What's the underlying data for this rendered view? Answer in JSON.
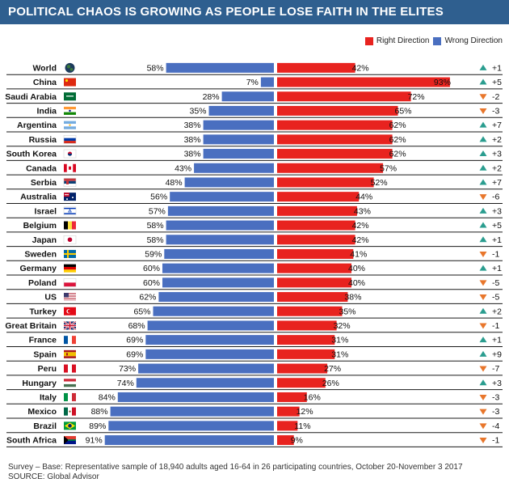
{
  "header": {
    "title": "POLITICAL CHAOS IS GROWING AS PEOPLE LOSE FAITH IN THE ELITES"
  },
  "legend": [
    {
      "name": "Right Direction",
      "color": "#e8231f"
    },
    {
      "name": "Wrong Direction",
      "color": "#4a6fc0"
    }
  ],
  "footer": {
    "survey": "Survey – Base: Representative sample of 18,940 adults aged 16-64 in 26 participating countries, October 20-November 3 2017",
    "source": "SOURCE: Global Advisor"
  },
  "chart_data": {
    "type": "bar",
    "categories": [
      "World",
      "China",
      "Saudi Arabia",
      "India",
      "Argentina",
      "Russia",
      "South Korea",
      "Canada",
      "Serbia",
      "Australia",
      "Israel",
      "Belgium",
      "Japan",
      "Sweden",
      "Germany",
      "Poland",
      "US",
      "Turkey",
      "Great Britain",
      "France",
      "Spain",
      "Peru",
      "Hungary",
      "Italy",
      "Mexico",
      "Brazil",
      "South Africa"
    ],
    "series": [
      {
        "name": "Wrong Direction",
        "color": "#4a6fc0",
        "values": [
          58,
          7,
          28,
          35,
          38,
          38,
          38,
          43,
          48,
          56,
          57,
          58,
          58,
          59,
          60,
          60,
          62,
          65,
          68,
          69,
          69,
          73,
          74,
          84,
          88,
          89,
          91
        ]
      },
      {
        "name": "Right Direction",
        "color": "#e8231f",
        "values": [
          42,
          93,
          72,
          65,
          62,
          62,
          62,
          57,
          52,
          44,
          43,
          42,
          42,
          41,
          40,
          40,
          38,
          35,
          32,
          31,
          31,
          27,
          26,
          16,
          12,
          11,
          9
        ]
      }
    ],
    "changes": [
      "+1",
      "+5",
      "-2",
      "-3",
      "+7",
      "+2",
      "+3",
      "+2",
      "+7",
      "-6",
      "+3",
      "+5",
      "+1",
      "-1",
      "+1",
      "-5",
      "-5",
      "+2",
      "-1",
      "+1",
      "+9",
      "-7",
      "+3",
      "-3",
      "-3",
      "-4",
      "-1"
    ],
    "flags": [
      "globe",
      "china",
      "saudi-arabia",
      "india",
      "argentina",
      "russia",
      "south-korea",
      "canada",
      "serbia",
      "australia",
      "israel",
      "belgium",
      "japan",
      "sweden",
      "germany",
      "poland",
      "us",
      "turkey",
      "great-britain",
      "france",
      "spain",
      "peru",
      "hungary",
      "italy",
      "mexico",
      "brazil",
      "south-africa"
    ],
    "up_color": "#2a9d8f",
    "down_color": "#e8762b",
    "value_suffix": "%"
  }
}
